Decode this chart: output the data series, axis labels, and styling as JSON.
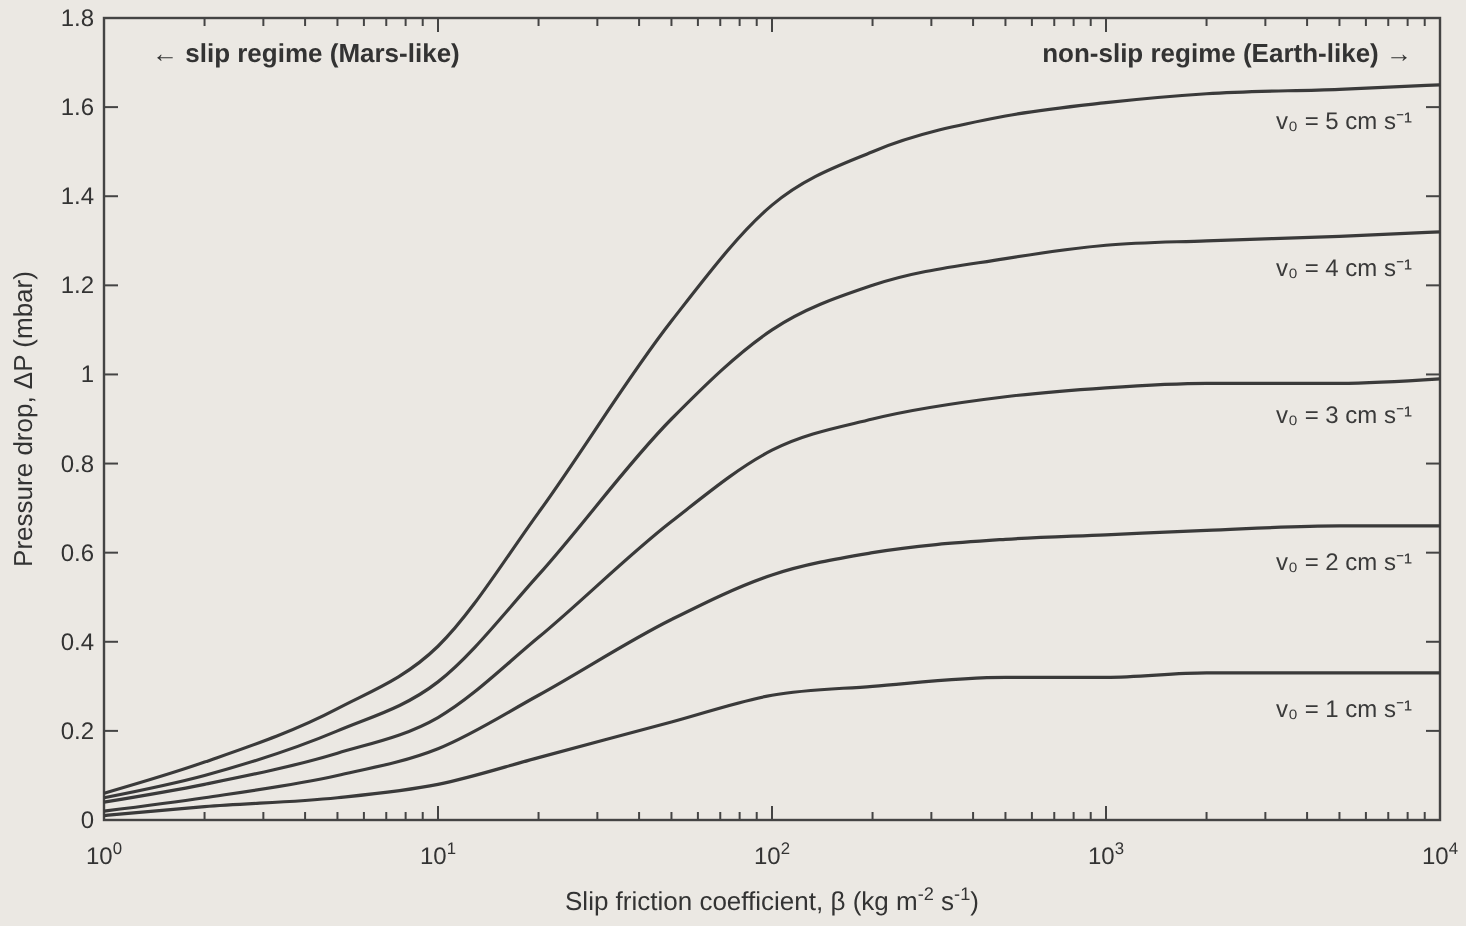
{
  "chart_data": {
    "type": "line",
    "xlabel": "Slip friction coefficient, β (kg m$^{-2}$ s$^{-1}$)",
    "ylabel": "Pressure drop, ΔP (mbar)",
    "log": "x",
    "grid": false,
    "legend": "right",
    "marker": "none",
    "line_style": "solid",
    "x": [
      1,
      2,
      5,
      10,
      20,
      50,
      100,
      200,
      500,
      1000,
      2000,
      5000,
      10000
    ],
    "xlim": [
      1,
      10000
    ],
    "xticks": [
      {
        "value": 1,
        "label": "10$^{0}$"
      },
      {
        "value": 2,
        "label": null
      },
      {
        "value": 3,
        "label": null
      },
      {
        "value": 4,
        "label": null
      },
      {
        "value": 5,
        "label": null
      },
      {
        "value": 6,
        "label": null
      },
      {
        "value": 7,
        "label": null
      },
      {
        "value": 8,
        "label": null
      },
      {
        "value": 9,
        "label": null
      },
      {
        "value": 10,
        "label": "10$^{1}$"
      },
      {
        "value": 20,
        "label": null
      },
      {
        "value": 30,
        "label": null
      },
      {
        "value": 40,
        "label": null
      },
      {
        "value": 50,
        "label": null
      },
      {
        "value": 60,
        "label": null
      },
      {
        "value": 70,
        "label": null
      },
      {
        "value": 80,
        "label": null
      },
      {
        "value": 90,
        "label": null
      },
      {
        "value": 100,
        "label": "10$^{2}$"
      },
      {
        "value": 200,
        "label": null
      },
      {
        "value": 300,
        "label": null
      },
      {
        "value": 400,
        "label": null
      },
      {
        "value": 500,
        "label": null
      },
      {
        "value": 600,
        "label": null
      },
      {
        "value": 700,
        "label": null
      },
      {
        "value": 800,
        "label": null
      },
      {
        "value": 900,
        "label": null
      },
      {
        "value": 1000,
        "label": "10$^{3}$"
      },
      {
        "value": 2000,
        "label": null
      },
      {
        "value": 3000,
        "label": null
      },
      {
        "value": 4000,
        "label": null
      },
      {
        "value": 5000,
        "label": null
      },
      {
        "value": 6000,
        "label": null
      },
      {
        "value": 7000,
        "label": null
      },
      {
        "value": 8000,
        "label": null
      },
      {
        "value": 9000,
        "label": null
      },
      {
        "value": 10000,
        "label": "10$^{4}$"
      }
    ],
    "ylim": [
      0,
      1.8
    ],
    "yticks": [
      0,
      0.2,
      0.4,
      0.6,
      0.8,
      1,
      1.2,
      1.4,
      1.6,
      1.8
    ],
    "annotations": [
      "← slip regime (Mars-like)",
      "non-slip regime (Earth-like) →"
    ],
    "series": [
      {
        "name": "v₀ = 5 cm s⁻¹",
        "color": "#3a3a3a",
        "values": [
          0.06,
          0.13,
          0.25,
          0.39,
          0.69,
          1.12,
          1.38,
          1.5,
          1.58,
          1.61,
          1.63,
          1.64,
          1.65
        ]
      },
      {
        "name": "v₀ = 4 cm s⁻¹",
        "color": "#3a3a3a",
        "values": [
          0.05,
          0.1,
          0.2,
          0.31,
          0.55,
          0.9,
          1.1,
          1.2,
          1.26,
          1.29,
          1.3,
          1.31,
          1.32
        ]
      },
      {
        "name": "v₀ = 3 cm s⁻¹",
        "color": "#3a3a3a",
        "values": [
          0.04,
          0.08,
          0.15,
          0.23,
          0.41,
          0.67,
          0.83,
          0.9,
          0.95,
          0.97,
          0.98,
          0.98,
          0.99
        ]
      },
      {
        "name": "v₀ = 2 cm s⁻¹",
        "color": "#3a3a3a",
        "values": [
          0.02,
          0.05,
          0.1,
          0.16,
          0.28,
          0.45,
          0.55,
          0.6,
          0.63,
          0.64,
          0.65,
          0.66,
          0.66
        ]
      },
      {
        "name": "v₀ = 1 cm s⁻¹",
        "color": "#3a3a3a",
        "values": [
          0.01,
          0.03,
          0.05,
          0.08,
          0.14,
          0.22,
          0.28,
          0.3,
          0.32,
          0.32,
          0.33,
          0.33,
          0.33
        ]
      }
    ]
  }
}
